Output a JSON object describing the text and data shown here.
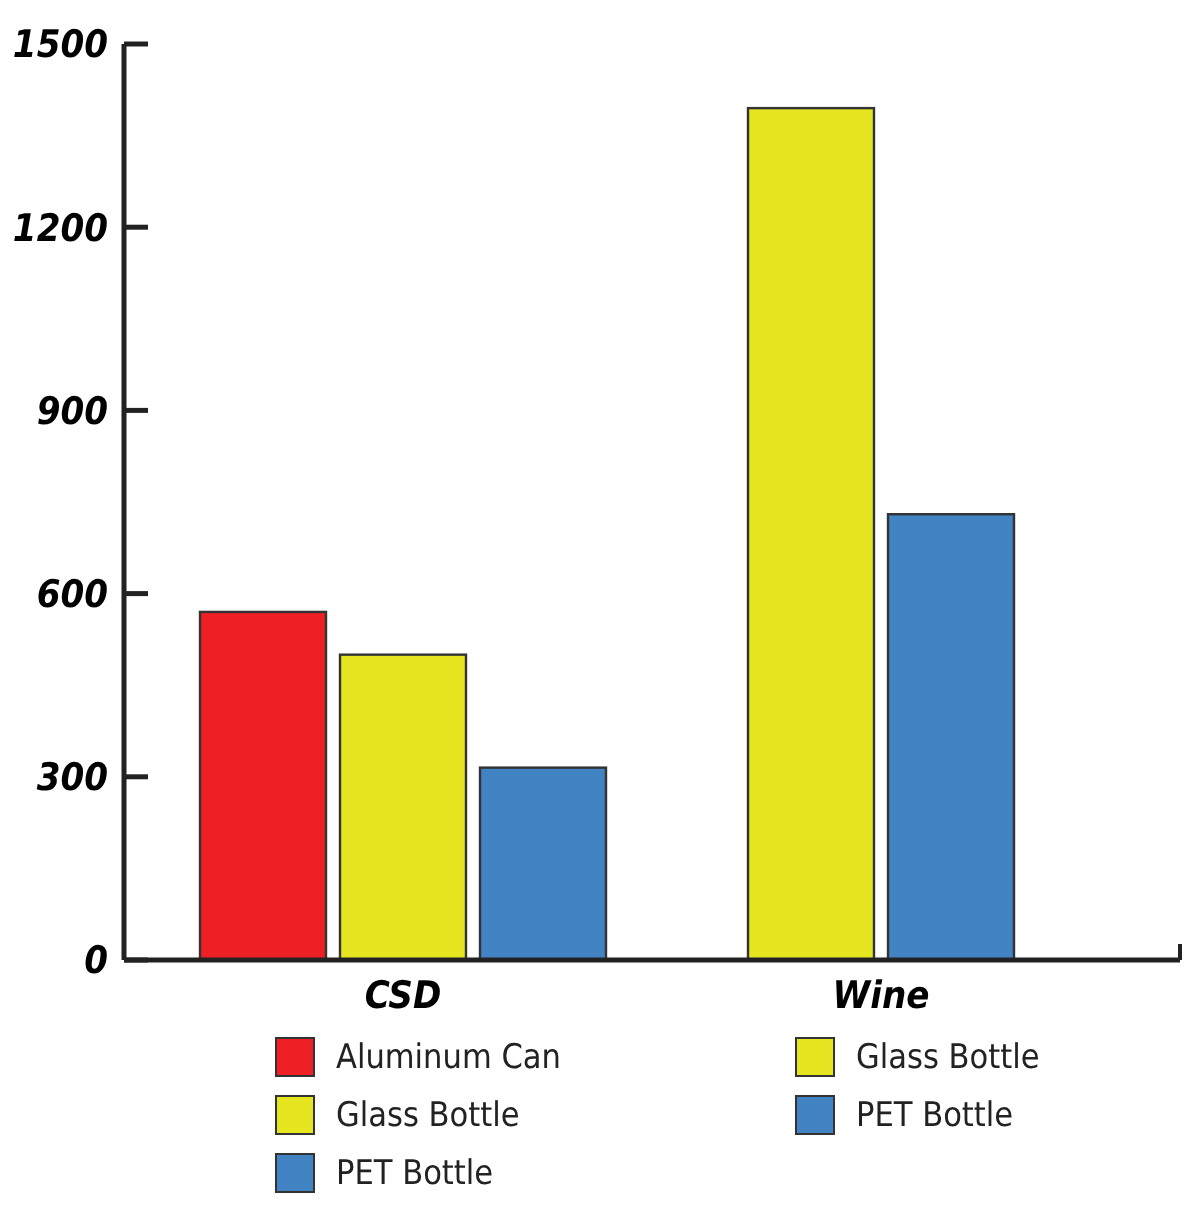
{
  "chart_data": {
    "type": "bar",
    "categories": [
      "CSD",
      "Wine"
    ],
    "series": [
      {
        "name": "Aluminum Can",
        "color": "#ee1f25",
        "values": [
          570,
          null
        ]
      },
      {
        "name": "Glass Bottle",
        "color": "#e5e520",
        "values": [
          500,
          null
        ]
      },
      {
        "name": "PET Bottle",
        "color": "#4283c4",
        "values": [
          315,
          null
        ]
      },
      {
        "name": "Glass Bottle",
        "color": "#e5e520",
        "values": [
          null,
          1395
        ]
      },
      {
        "name": "PET Bottle",
        "color": "#4283c4",
        "values": [
          null,
          730
        ]
      }
    ],
    "ylim": [
      0,
      1500
    ],
    "yticks": [
      0,
      300,
      600,
      900,
      1200,
      1500
    ],
    "grid": false,
    "legend": "bottom"
  }
}
